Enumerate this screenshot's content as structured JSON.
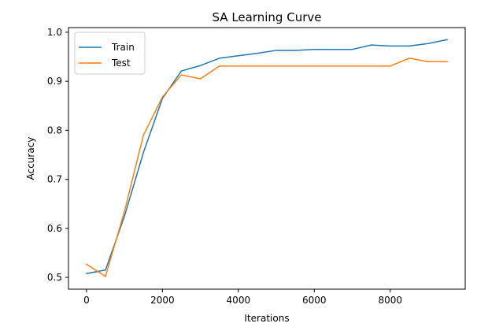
{
  "chart_data": {
    "type": "line",
    "title": "SA Learning Curve",
    "xlabel": "Iterations",
    "ylabel": "Accuracy",
    "xlim": [
      -475,
      9975
    ],
    "ylim": [
      0.476,
      1.0095
    ],
    "xticks": [
      0,
      2000,
      4000,
      6000,
      8000
    ],
    "xtick_labels": [
      "0",
      "2000",
      "4000",
      "6000",
      "8000"
    ],
    "yticks": [
      0.5,
      0.6,
      0.7,
      0.8,
      0.9,
      1.0
    ],
    "ytick_labels": [
      "0.5",
      "0.6",
      "0.7",
      "0.8",
      "0.9",
      "1.0"
    ],
    "x": [
      0,
      500,
      1000,
      1500,
      2000,
      2500,
      3000,
      3500,
      4000,
      4500,
      5000,
      5500,
      6000,
      6500,
      7000,
      7500,
      8000,
      8500,
      9000,
      9500
    ],
    "series": [
      {
        "name": "Train",
        "color": "#1f77b4",
        "values": [
          0.508,
          0.515,
          0.625,
          0.755,
          0.865,
          0.921,
          0.932,
          0.947,
          0.952,
          0.957,
          0.963,
          0.963,
          0.965,
          0.965,
          0.965,
          0.974,
          0.972,
          0.972,
          0.977,
          0.985
        ]
      },
      {
        "name": "Test",
        "color": "#ff7f0e",
        "values": [
          0.527,
          0.502,
          0.635,
          0.79,
          0.868,
          0.913,
          0.905,
          0.931,
          0.931,
          0.931,
          0.931,
          0.931,
          0.931,
          0.931,
          0.931,
          0.931,
          0.931,
          0.947,
          0.94,
          0.94
        ]
      }
    ],
    "legend_position": "top-left",
    "grid": false
  }
}
